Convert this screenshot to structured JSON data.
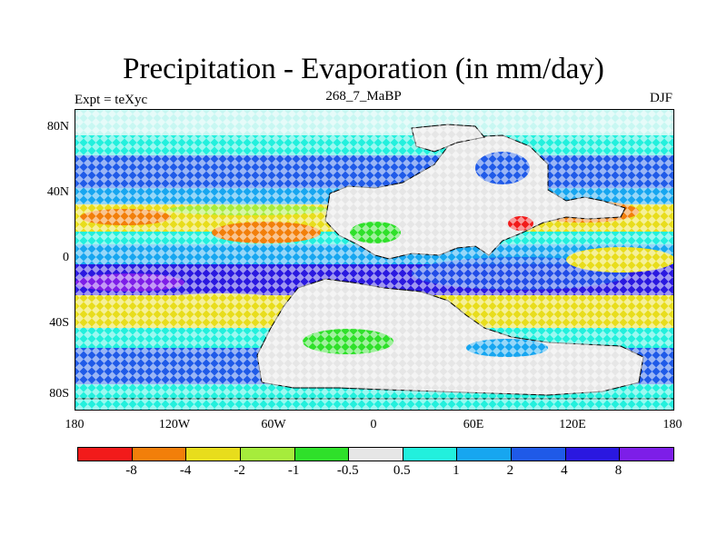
{
  "title": "Precipitation - Evaporation (in mm/day)",
  "subtitle": "268_7_MaBP",
  "left_label": "Expt = teXyc",
  "right_label": "DJF",
  "y_ticks": [
    "80N",
    "40N",
    "0",
    "40S",
    "80S"
  ],
  "x_ticks": [
    "180",
    "120W",
    "60W",
    "0",
    "60E",
    "120E",
    "180"
  ],
  "colorbar": {
    "colors": [
      "#f21a1a",
      "#f27f0a",
      "#e8dd1c",
      "#a6ec3c",
      "#2fe02a",
      "#e6e6e6",
      "#22f0dd",
      "#17a6f0",
      "#1f5ae8",
      "#2a18e0",
      "#7d1ee8"
    ],
    "labels": [
      "-8",
      "-4",
      "-2",
      "-1",
      "-0.5",
      "0.5",
      "1",
      "2",
      "4",
      "8"
    ]
  },
  "colors": {
    "land": "#e6e6e6",
    "coast": "#000000"
  }
}
